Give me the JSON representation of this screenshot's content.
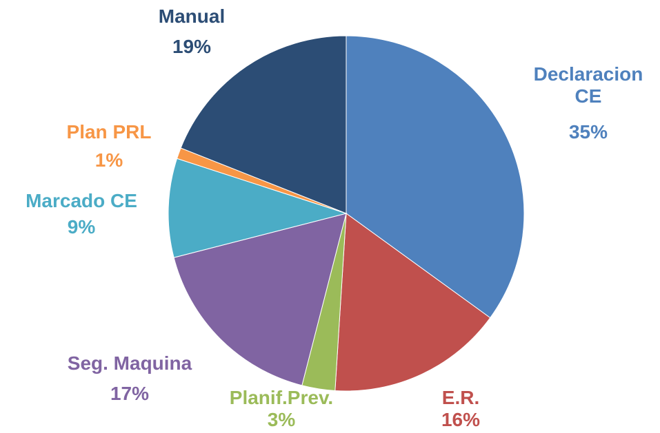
{
  "chart_data": {
    "type": "pie",
    "categories": [
      "Declaracion CE",
      "E.R.",
      "Planif.Prev.",
      "Seg. Maquina",
      "Marcado CE",
      "Plan PRL",
      "Manual"
    ],
    "values": [
      35,
      16,
      3,
      17,
      9,
      1,
      19
    ],
    "value_labels": [
      "35%",
      "16%",
      "3%",
      "17%",
      "9%",
      "1%",
      "19%"
    ],
    "colors": [
      "#4f81bd",
      "#c0504d",
      "#9bbb59",
      "#8064a2",
      "#4bacc6",
      "#f79646",
      "#2c4d75"
    ]
  }
}
